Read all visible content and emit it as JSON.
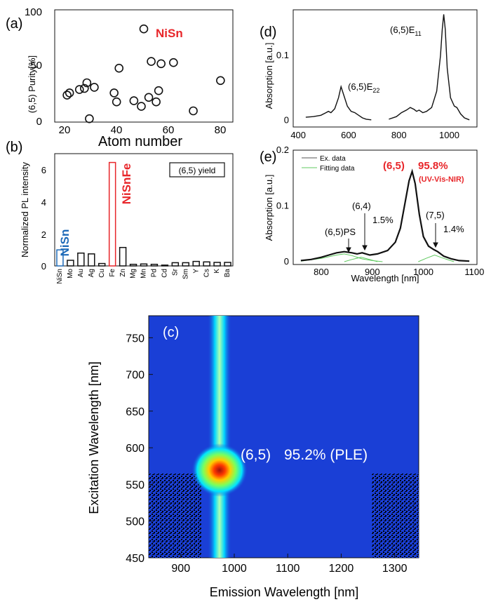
{
  "colors": {
    "red": "#e8262a",
    "blue": "#1f6bb8",
    "black": "#111111",
    "green": "#5fc95f",
    "heat_bg": "#1a3fd6"
  },
  "chart_data": [
    {
      "panel": "(a)",
      "type": "scatter",
      "ylabel": "(6,5) Purity[%]",
      "xlabel": "Atom number",
      "xlim": [
        14,
        86
      ],
      "ylim": [
        0,
        100
      ],
      "xticks": [
        "20",
        "40",
        "60",
        "80"
      ],
      "yticks": [
        "0",
        "50",
        "100"
      ],
      "annotation": "NiSn",
      "points": [
        {
          "x": 19,
          "y": 24
        },
        {
          "x": 20,
          "y": 26
        },
        {
          "x": 24,
          "y": 29
        },
        {
          "x": 26,
          "y": 30
        },
        {
          "x": 27,
          "y": 35
        },
        {
          "x": 28,
          "y": 3
        },
        {
          "x": 30,
          "y": 31
        },
        {
          "x": 38,
          "y": 26
        },
        {
          "x": 39,
          "y": 18
        },
        {
          "x": 40,
          "y": 48
        },
        {
          "x": 46,
          "y": 19
        },
        {
          "x": 49,
          "y": 14
        },
        {
          "x": 50,
          "y": 83
        },
        {
          "x": 52,
          "y": 22
        },
        {
          "x": 53,
          "y": 54
        },
        {
          "x": 55,
          "y": 18
        },
        {
          "x": 56,
          "y": 28
        },
        {
          "x": 57,
          "y": 52
        },
        {
          "x": 62,
          "y": 53
        },
        {
          "x": 70,
          "y": 10
        },
        {
          "x": 81,
          "y": 37
        }
      ]
    },
    {
      "panel": "(b)",
      "type": "bar",
      "ylabel": "Normalized PL intensity",
      "ylim": [
        0,
        7
      ],
      "yticks": [
        "0",
        "2",
        "4",
        "6"
      ],
      "legend": "(6,5) yield",
      "label_nisn": "NiSn",
      "label_nisnfe": "NiSnFe",
      "categories": [
        "NiSn",
        "Mo",
        "Au",
        "Ag",
        "Cu",
        "Fe",
        "Zn",
        "Mg",
        "Mn",
        "Pd",
        "Cd",
        "Sr",
        "Sm",
        "Y",
        "Cs",
        "K",
        "Ba"
      ],
      "values": [
        1.0,
        0.35,
        0.8,
        0.75,
        0.15,
        6.45,
        1.15,
        0.1,
        0.12,
        0.1,
        0.05,
        0.2,
        0.2,
        0.28,
        0.25,
        0.22,
        0.22
      ],
      "highlight": {
        "NiSn": "blue",
        "Fe": "red"
      }
    },
    {
      "panel": "(c)",
      "type": "heatmap",
      "xlabel": "Emission Wavelength [nm]",
      "ylabel": "Excitation Wavelength [nm]",
      "xlim": [
        840,
        1345
      ],
      "ylim": [
        450,
        780
      ],
      "xticks": [
        "900",
        "1000",
        "1100",
        "1200",
        "1300"
      ],
      "yticks": [
        "450",
        "500",
        "550",
        "600",
        "650",
        "700",
        "750"
      ],
      "annotation_chirality": "(6,5)",
      "annotation_purity": "95.2% (PLE)",
      "peak": {
        "x": 970,
        "y": 567
      }
    },
    {
      "panel": "(d)",
      "type": "line",
      "ylabel": "Absorption [a.u.]",
      "xlim": [
        380,
        1110
      ],
      "ylim": [
        -0.01,
        0.17
      ],
      "xticks": [
        "400",
        "600",
        "800",
        "1000"
      ],
      "yticks": [
        "0",
        "0.1"
      ],
      "peak_labels": [
        {
          "base": "(6,5)E",
          "sub": "11",
          "x": 978
        },
        {
          "base": "(6,5)E",
          "sub": "22",
          "x": 570
        }
      ],
      "segments": [
        [
          [
            430,
            0.005
          ],
          [
            460,
            0.006
          ],
          [
            490,
            0.008
          ],
          [
            510,
            0.012
          ],
          [
            520,
            0.014
          ],
          [
            530,
            0.012
          ],
          [
            545,
            0.018
          ],
          [
            560,
            0.035
          ],
          [
            570,
            0.052
          ],
          [
            580,
            0.04
          ],
          [
            595,
            0.022
          ],
          [
            610,
            0.014
          ],
          [
            625,
            0.012
          ],
          [
            640,
            0.008
          ],
          [
            655,
            0.004
          ],
          [
            670,
            0.002
          ],
          [
            690,
            0.001
          ]
        ],
        [
          [
            760,
            0.002
          ],
          [
            790,
            0.006
          ],
          [
            810,
            0.012
          ],
          [
            830,
            0.016
          ],
          [
            845,
            0.02
          ],
          [
            860,
            0.017
          ],
          [
            870,
            0.014
          ],
          [
            880,
            0.016
          ],
          [
            895,
            0.012
          ],
          [
            910,
            0.014
          ],
          [
            930,
            0.02
          ],
          [
            950,
            0.045
          ],
          [
            965,
            0.1
          ],
          [
            972,
            0.14
          ],
          [
            978,
            0.163
          ],
          [
            984,
            0.14
          ],
          [
            992,
            0.08
          ],
          [
            1005,
            0.035
          ],
          [
            1020,
            0.022
          ],
          [
            1030,
            0.02
          ],
          [
            1045,
            0.01
          ],
          [
            1060,
            0.004
          ],
          [
            1080,
            0.001
          ]
        ]
      ]
    },
    {
      "panel": "(e)",
      "type": "line",
      "xlabel": "Wavelength [nm]",
      "ylabel": "Absorption [a.u.]",
      "xlim": [
        745,
        1105
      ],
      "ylim": [
        -0.005,
        0.2
      ],
      "xticks": [
        "800",
        "900",
        "1000",
        "1100"
      ],
      "yticks": [
        "0",
        "0.1",
        "0.2"
      ],
      "legend": [
        "Ex. data",
        "Fitting data"
      ],
      "title_species": "(6,5)",
      "title_purity": "95.8%",
      "title_method": "(UV-Vis-NIR)",
      "labels": [
        {
          "text": "(6,5)PS",
          "x": 845
        },
        {
          "text": "(6,4)",
          "x": 878
        },
        {
          "text": "1.5%",
          "x": 900
        },
        {
          "text": "(7,5)",
          "x": 1022
        },
        {
          "text": "1.4%",
          "x": 1035
        }
      ],
      "series_data": [
        [
          760,
          0.002
        ],
        [
          780,
          0.004
        ],
        [
          800,
          0.008
        ],
        [
          815,
          0.012
        ],
        [
          830,
          0.016
        ],
        [
          845,
          0.018
        ],
        [
          860,
          0.016
        ],
        [
          870,
          0.014
        ],
        [
          880,
          0.016
        ],
        [
          895,
          0.012
        ],
        [
          910,
          0.014
        ],
        [
          930,
          0.02
        ],
        [
          945,
          0.035
        ],
        [
          955,
          0.06
        ],
        [
          965,
          0.11
        ],
        [
          972,
          0.145
        ],
        [
          978,
          0.162
        ],
        [
          984,
          0.14
        ],
        [
          992,
          0.085
        ],
        [
          1000,
          0.045
        ],
        [
          1010,
          0.028
        ],
        [
          1020,
          0.022
        ],
        [
          1028,
          0.018
        ],
        [
          1040,
          0.01
        ],
        [
          1055,
          0.005
        ],
        [
          1070,
          0.002
        ],
        [
          1090,
          0.001
        ]
      ],
      "series_fit": [
        [
          [
            760,
            0.001
          ],
          [
            800,
            0.006
          ],
          [
            830,
            0.012
          ],
          [
            845,
            0.014
          ],
          [
            860,
            0.011
          ],
          [
            880,
            0.005
          ],
          [
            900,
            0.002
          ],
          [
            920,
            0.0
          ]
        ],
        [
          [
            845,
            0.0
          ],
          [
            860,
            0.004
          ],
          [
            878,
            0.008
          ],
          [
            895,
            0.004
          ],
          [
            910,
            0.0
          ]
        ],
        [
          [
            990,
            0.0
          ],
          [
            1005,
            0.006
          ],
          [
            1022,
            0.012
          ],
          [
            1040,
            0.006
          ],
          [
            1060,
            0.0
          ]
        ]
      ]
    }
  ]
}
